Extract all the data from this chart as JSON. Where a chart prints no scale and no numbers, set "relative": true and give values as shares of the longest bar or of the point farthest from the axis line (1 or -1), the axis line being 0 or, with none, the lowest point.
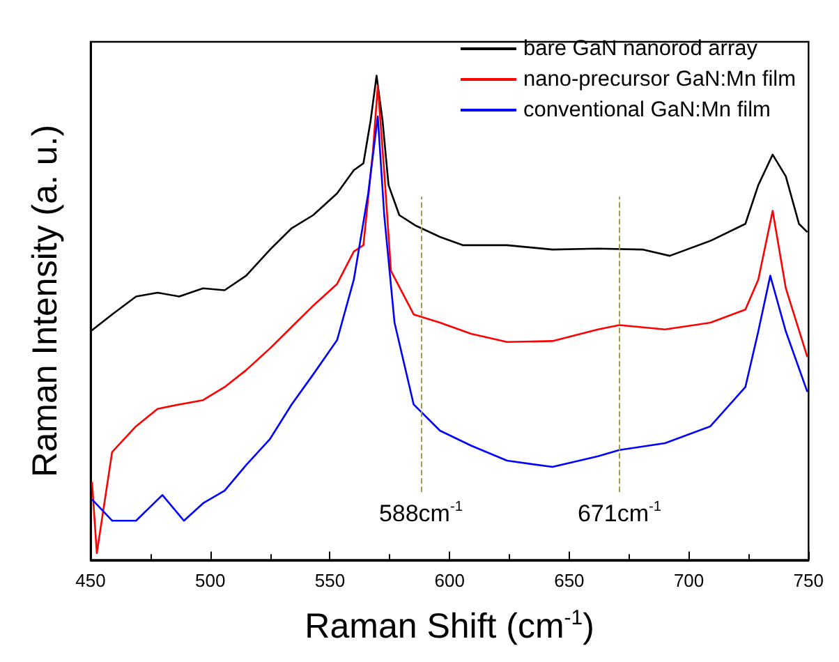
{
  "chart_data": {
    "type": "line",
    "relative": true,
    "xlabel": "Raman Shift (cm$^{-1}$)",
    "ylabel": "Raman Intensity (a. u.)",
    "xlim": [
      450,
      750
    ],
    "xticks": [
      450,
      500,
      550,
      600,
      650,
      700,
      750
    ],
    "legend": "top right",
    "marker": "none",
    "line_style": "solid",
    "grid": false,
    "series": [
      {
        "name": "bare GaN nanorod array",
        "color": "#000000",
        "x": [
          450,
          459,
          469,
          478,
          487,
          497,
          506,
          515,
          525,
          534,
          543,
          553,
          560,
          564,
          567,
          569.5,
          572,
          574.5,
          579,
          586,
          596,
          605.5,
          624,
          643,
          662,
          680.6,
          692,
          709,
          723.6,
          729,
          735,
          740.5,
          746,
          749.5
        ],
        "values": [
          0.472,
          0.507,
          0.544,
          0.552,
          0.544,
          0.561,
          0.557,
          0.587,
          0.641,
          0.685,
          0.712,
          0.757,
          0.805,
          0.819,
          0.907,
          1.0,
          0.907,
          0.774,
          0.712,
          0.69,
          0.667,
          0.65,
          0.65,
          0.641,
          0.643,
          0.641,
          0.628,
          0.659,
          0.694,
          0.774,
          0.837,
          0.792,
          0.694,
          0.677
        ]
      },
      {
        "name": "nano-precursor GaN:Mn film",
        "color": "#ff0000",
        "x": [
          450.6,
          452.6,
          459,
          469,
          478,
          487,
          497,
          506,
          515,
          525,
          534,
          543,
          553,
          560,
          564,
          568,
          570,
          572.7,
          575.5,
          585,
          596,
          609,
          624,
          643,
          662,
          671,
          690,
          709,
          723.6,
          729,
          735,
          740.5,
          749.5
        ],
        "values": [
          0.161,
          0.014,
          0.223,
          0.276,
          0.312,
          0.321,
          0.33,
          0.357,
          0.392,
          0.437,
          0.481,
          0.525,
          0.57,
          0.637,
          0.65,
          0.845,
          0.979,
          0.801,
          0.597,
          0.507,
          0.49,
          0.467,
          0.45,
          0.452,
          0.476,
          0.485,
          0.476,
          0.49,
          0.517,
          0.579,
          0.721,
          0.561,
          0.419
        ]
      },
      {
        "name": "conventional GaN:Mn film",
        "color": "#0000ff",
        "x": [
          450.6,
          459,
          469,
          480,
          489,
          497,
          506,
          515,
          525,
          534,
          543,
          553,
          560,
          566,
          570,
          572.7,
          577,
          585,
          596,
          609,
          624,
          643,
          662,
          671,
          690,
          709,
          723.6,
          729,
          734,
          740.5,
          749.5
        ],
        "values": [
          0.125,
          0.081,
          0.081,
          0.134,
          0.081,
          0.117,
          0.143,
          0.196,
          0.25,
          0.321,
          0.383,
          0.454,
          0.579,
          0.757,
          0.916,
          0.712,
          0.49,
          0.321,
          0.267,
          0.236,
          0.205,
          0.192,
          0.214,
          0.227,
          0.241,
          0.276,
          0.357,
          0.472,
          0.587,
          0.472,
          0.347
        ]
      }
    ],
    "ref_lines": [
      {
        "axis": "x",
        "value": 588,
        "label": "588cm$^{-1}$",
        "color": "#a09a50",
        "line_style": "dashed"
      },
      {
        "axis": "x",
        "value": 671,
        "label": "671cm$^{-1}$",
        "color": "#a09a50",
        "line_style": "dashed"
      }
    ]
  }
}
